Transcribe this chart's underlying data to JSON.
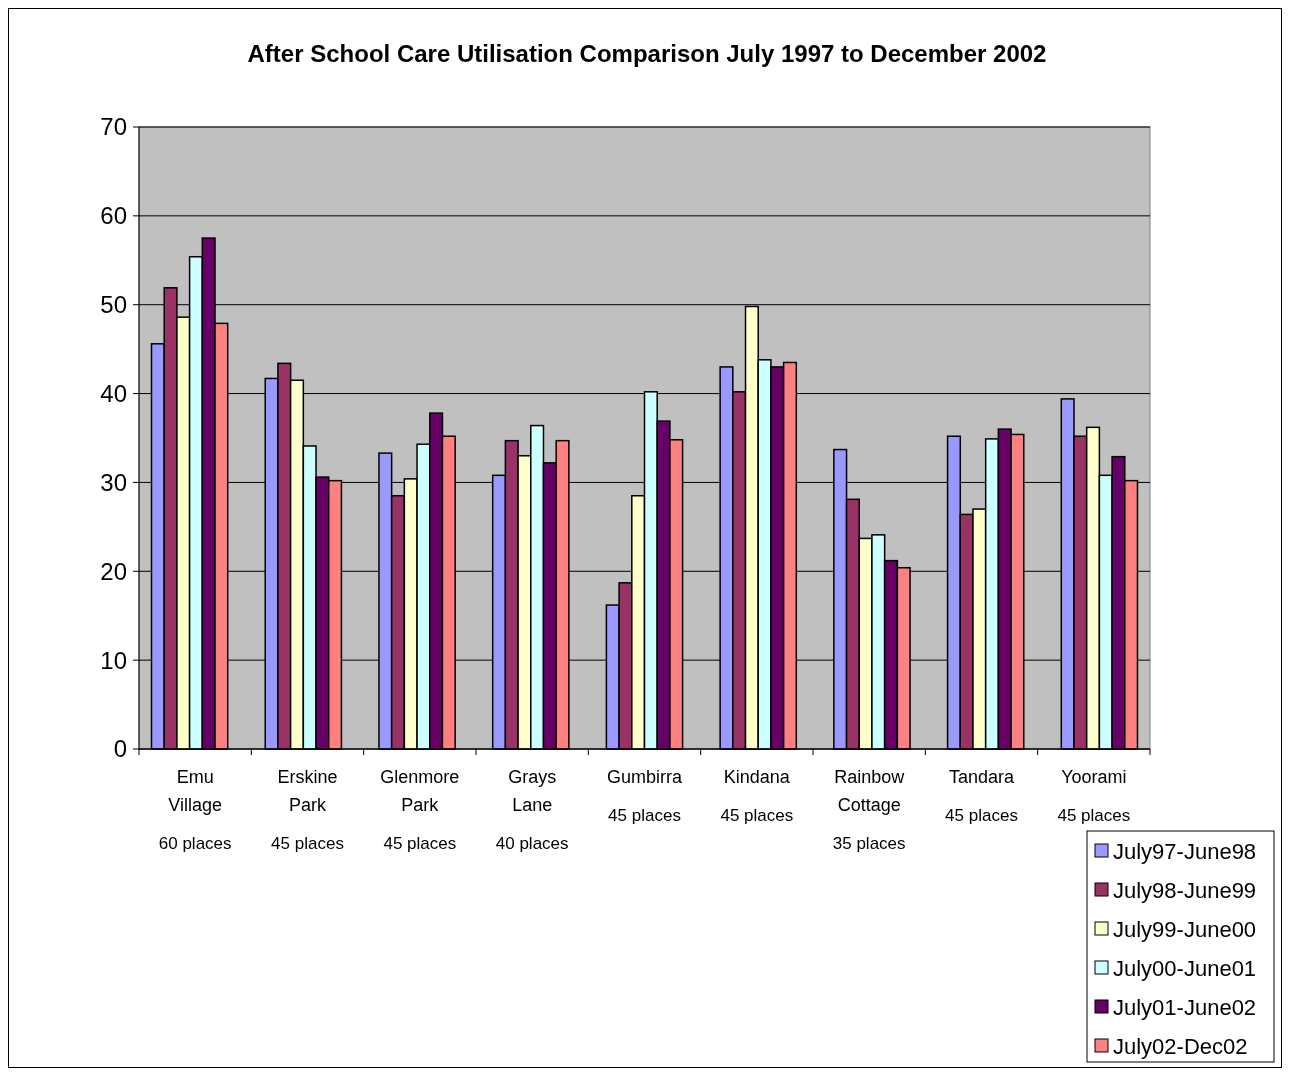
{
  "chart_data": {
    "type": "bar",
    "title": "After School Care Utilisation Comparison July 1997 to December 2002",
    "categories": [
      "Emu Village",
      "Erskine Park",
      "Glenmore Park",
      "Grays Lane",
      "Gumbirra",
      "Kindana",
      "Rainbow Cottage",
      "Tandara",
      "Yoorami"
    ],
    "series": [
      {
        "name": "July97-June98",
        "color": "#9999ff",
        "values": [
          45.6,
          41.7,
          33.3,
          30.8,
          16.2,
          43.0,
          33.7,
          35.2,
          39.4
        ]
      },
      {
        "name": "July98-June99",
        "color": "#993366",
        "values": [
          51.9,
          43.4,
          28.5,
          34.7,
          18.7,
          40.2,
          28.1,
          26.4,
          35.2
        ]
      },
      {
        "name": "July99-June00",
        "color": "#ffffcc",
        "values": [
          48.6,
          41.5,
          30.4,
          33.0,
          28.5,
          49.8,
          23.7,
          27.0,
          36.2
        ]
      },
      {
        "name": "July00-June01",
        "color": "#ccffff",
        "values": [
          55.4,
          34.1,
          34.3,
          36.4,
          40.2,
          43.8,
          24.1,
          34.9,
          30.8
        ]
      },
      {
        "name": "July01-June02",
        "color": "#660066",
        "values": [
          57.5,
          30.6,
          37.8,
          32.2,
          36.9,
          43.0,
          21.2,
          36.0,
          32.9
        ]
      },
      {
        "name": "July02-Dec02",
        "color": "#ff8080",
        "values": [
          47.9,
          30.2,
          35.2,
          34.7,
          34.8,
          43.5,
          20.4,
          35.4,
          30.2
        ]
      }
    ],
    "ylim": [
      0,
      70
    ],
    "yticks": [
      0,
      10,
      20,
      30,
      40,
      50,
      60,
      70
    ],
    "grid": "y",
    "legend": "bottom right",
    "annotations": [
      "60 places",
      "45 places",
      "45 places",
      "40 places",
      "45 places",
      "45 places",
      "35 places",
      "45 places",
      "45 places"
    ]
  }
}
